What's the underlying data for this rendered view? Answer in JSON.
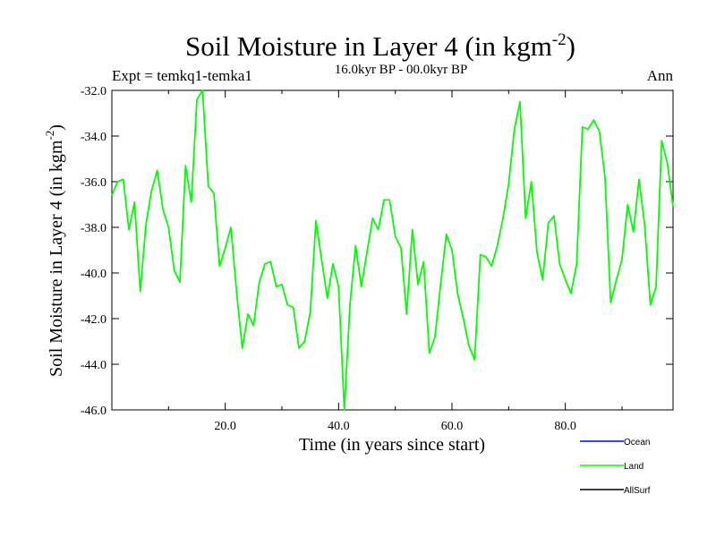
{
  "chart_data": {
    "type": "line",
    "title": "Soil Moisture in Layer 4 (in kgm",
    "title_sup": "-2",
    "title_close": ")",
    "subtitle": "16.0kyr BP - 00.0kyr BP",
    "left_label": "Expt = temkq1-temka1",
    "right_label": "Ann",
    "xlabel": "Time (in years since start)",
    "ylabel": "Soil Moisture in Layer 4 (in kgm",
    "ylabel_sup": "-2",
    "ylabel_close": ")",
    "xlim": [
      0,
      99
    ],
    "ylim": [
      -46.0,
      -32.0
    ],
    "xticks": [
      20.0,
      40.0,
      60.0,
      80.0
    ],
    "xtick_labels": [
      "20.0",
      "40.0",
      "60.0",
      "80.0"
    ],
    "yticks": [
      -32.0,
      -34.0,
      -36.0,
      -38.0,
      -40.0,
      -42.0,
      -44.0,
      -46.0
    ],
    "ytick_labels": [
      "-32.0",
      "-34.0",
      "-36.0",
      "-38.0",
      "-40.0",
      "-42.0",
      "-44.0",
      "-46.0"
    ],
    "legend": [
      {
        "name": "Ocean",
        "color": "#0000ff"
      },
      {
        "name": "Land",
        "color": "#00ff00"
      },
      {
        "name": "AllSurf",
        "color": "#000000"
      }
    ],
    "legend_placement": "bottom-right",
    "grid": false,
    "series": [
      {
        "name": "Land",
        "color": "#00ff00",
        "x": [
          0,
          1,
          2,
          3,
          4,
          5,
          6,
          7,
          8,
          9,
          10,
          11,
          12,
          13,
          14,
          15,
          16,
          17,
          18,
          19,
          20,
          21,
          22,
          23,
          24,
          25,
          26,
          27,
          28,
          29,
          30,
          31,
          32,
          33,
          34,
          35,
          36,
          37,
          38,
          39,
          40,
          41,
          42,
          43,
          44,
          45,
          46,
          47,
          48,
          49,
          50,
          51,
          52,
          53,
          54,
          55,
          56,
          57,
          58,
          59,
          60,
          61,
          62,
          63,
          64,
          65,
          66,
          67,
          68,
          69,
          70,
          71,
          72,
          73,
          74,
          75,
          76,
          77,
          78,
          79,
          80,
          81,
          82,
          83,
          84,
          85,
          86,
          87,
          88,
          89,
          90,
          91,
          92,
          93,
          94,
          95,
          96,
          97,
          98,
          99
        ],
        "values": [
          -36.6,
          -36.0,
          -35.9,
          -38.1,
          -36.9,
          -40.8,
          -37.9,
          -36.4,
          -35.5,
          -37.2,
          -38.0,
          -39.9,
          -40.4,
          -35.3,
          -36.9,
          -32.4,
          -32.0,
          -36.2,
          -36.5,
          -39.7,
          -38.9,
          -38.0,
          -40.8,
          -43.3,
          -41.8,
          -42.3,
          -40.4,
          -39.6,
          -39.5,
          -40.6,
          -40.5,
          -41.4,
          -41.5,
          -43.3,
          -43.0,
          -41.7,
          -37.7,
          -39.4,
          -41.1,
          -39.6,
          -40.6,
          -46.0,
          -41.4,
          -38.8,
          -40.6,
          -39.1,
          -37.6,
          -38.1,
          -36.8,
          -36.8,
          -38.4,
          -38.9,
          -41.8,
          -38.1,
          -40.5,
          -39.5,
          -43.5,
          -42.8,
          -40.5,
          -38.3,
          -39.0,
          -40.9,
          -42.0,
          -43.2,
          -43.8,
          -39.2,
          -39.3,
          -39.7,
          -38.8,
          -37.6,
          -36.1,
          -33.7,
          -32.5,
          -37.6,
          -36.0,
          -39.1,
          -40.3,
          -37.8,
          -37.5,
          -39.6,
          -40.3,
          -40.9,
          -39.6,
          -33.6,
          -33.7,
          -33.3,
          -33.8,
          -35.8,
          -41.3,
          -40.3,
          -39.4,
          -37.0,
          -38.2,
          -35.9,
          -37.9,
          -41.4,
          -40.6,
          -34.2,
          -35.2,
          -37.1
        ]
      }
    ]
  }
}
